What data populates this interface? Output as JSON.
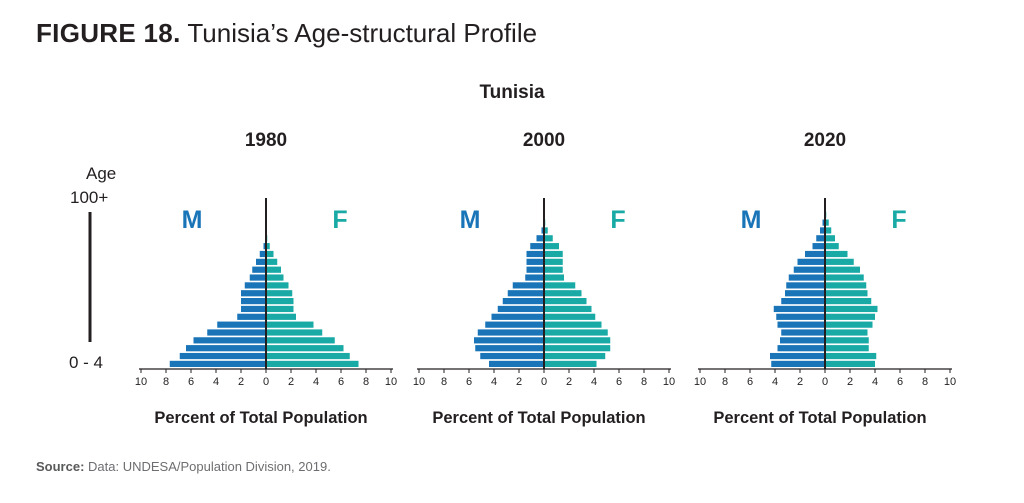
{
  "figure": {
    "number": "FIGURE 18.",
    "title": "Tunisia’s Age-structural Profile",
    "country": "Tunisia",
    "source_label": "Source:",
    "source_text": " Data: UNDESA/Population Division, 2019."
  },
  "colors": {
    "male": "#1a75b8",
    "female": "#1aaaa6",
    "axis": "#231f20"
  },
  "chart_data": [
    {
      "type": "bar",
      "title": "1980",
      "xlabel": "Percent of Total Population",
      "ylabel": "Age",
      "y_top_label": "100+",
      "y_bottom_label": "0 - 4",
      "male_label": "M",
      "female_label": "F",
      "xlim": [
        -10,
        10
      ],
      "x_ticks": [
        "10",
        "8",
        "6",
        "4",
        "2",
        "0",
        "2",
        "4",
        "6",
        "8",
        "10"
      ],
      "male": [
        7.7,
        6.9,
        6.4,
        5.8,
        4.7,
        3.9,
        2.3,
        2.0,
        2.0,
        2.0,
        1.7,
        1.3,
        1.1,
        0.8,
        0.5,
        0.2,
        0.05,
        0.02,
        0.01,
        0.0,
        0.0
      ],
      "female": [
        7.4,
        6.7,
        6.2,
        5.5,
        4.5,
        3.8,
        2.4,
        2.2,
        2.2,
        2.1,
        1.8,
        1.4,
        1.2,
        0.9,
        0.6,
        0.3,
        0.1,
        0.03,
        0.01,
        0.0,
        0.0
      ]
    },
    {
      "type": "bar",
      "title": "2000",
      "xlabel": "Percent of Total Population",
      "male_label": "M",
      "female_label": "F",
      "xlim": [
        -10,
        10
      ],
      "x_ticks": [
        "10",
        "8",
        "6",
        "4",
        "2",
        "0",
        "2",
        "4",
        "6",
        "8",
        "10"
      ],
      "male": [
        4.4,
        5.1,
        5.5,
        5.6,
        5.3,
        4.7,
        4.2,
        3.7,
        3.3,
        2.9,
        2.5,
        1.5,
        1.4,
        1.4,
        1.4,
        1.1,
        0.6,
        0.2,
        0.05,
        0.0,
        0.0
      ],
      "female": [
        4.2,
        4.9,
        5.3,
        5.3,
        5.1,
        4.6,
        4.1,
        3.8,
        3.4,
        3.0,
        2.5,
        1.6,
        1.5,
        1.5,
        1.5,
        1.2,
        0.7,
        0.3,
        0.1,
        0.0,
        0.0
      ]
    },
    {
      "type": "bar",
      "title": "2020",
      "xlabel": "Percent of Total Population",
      "male_label": "M",
      "female_label": "F",
      "xlim": [
        -10,
        10
      ],
      "x_ticks": [
        "10",
        "8",
        "6",
        "4",
        "2",
        "0",
        "2",
        "4",
        "6",
        "8",
        "10"
      ],
      "male": [
        4.3,
        4.4,
        3.8,
        3.6,
        3.5,
        3.8,
        3.9,
        4.1,
        3.5,
        3.2,
        3.1,
        2.9,
        2.5,
        2.2,
        1.6,
        1.0,
        0.7,
        0.4,
        0.2,
        0.05,
        0.0
      ],
      "female": [
        4.0,
        4.1,
        3.5,
        3.5,
        3.4,
        3.8,
        4.0,
        4.2,
        3.7,
        3.4,
        3.3,
        3.1,
        2.8,
        2.3,
        1.8,
        1.1,
        0.8,
        0.5,
        0.3,
        0.1,
        0.0
      ]
    }
  ]
}
